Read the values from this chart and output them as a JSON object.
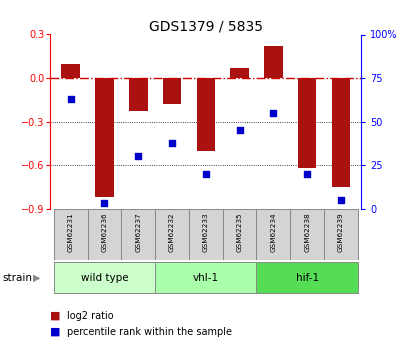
{
  "title": "GDS1379 / 5835",
  "samples": [
    "GSM62231",
    "GSM62236",
    "GSM62237",
    "GSM62232",
    "GSM62233",
    "GSM62235",
    "GSM62234",
    "GSM62238",
    "GSM62239"
  ],
  "log2_ratio": [
    0.1,
    -0.82,
    -0.23,
    -0.18,
    -0.5,
    0.07,
    0.22,
    -0.62,
    -0.75
  ],
  "percentile_rank": [
    63,
    3,
    30,
    38,
    20,
    45,
    55,
    20,
    5
  ],
  "ylim_left": [
    -0.9,
    0.3
  ],
  "ylim_right": [
    0,
    100
  ],
  "yticks_left": [
    0.3,
    0.0,
    -0.3,
    -0.6,
    -0.9
  ],
  "yticks_right": [
    100,
    75,
    50,
    25,
    0
  ],
  "ytick_right_labels": [
    "100%",
    "75",
    "50",
    "25",
    "0"
  ],
  "groups": [
    {
      "label": "wild type",
      "start": 0,
      "end": 3,
      "color": "#ccffcc"
    },
    {
      "label": "vhl-1",
      "start": 3,
      "end": 6,
      "color": "#aaffaa"
    },
    {
      "label": "hif-1",
      "start": 6,
      "end": 9,
      "color": "#55dd55"
    }
  ],
  "bar_color": "#aa1111",
  "dot_color": "#0000cc",
  "bg_color": "#ffffff",
  "plot_bg": "#ffffff",
  "zero_line_color": "#cc0000",
  "grid_color": "#000000",
  "bar_width": 0.55,
  "legend_bar_label": "log2 ratio",
  "legend_dot_label": "percentile rank within the sample",
  "strain_label": "strain"
}
